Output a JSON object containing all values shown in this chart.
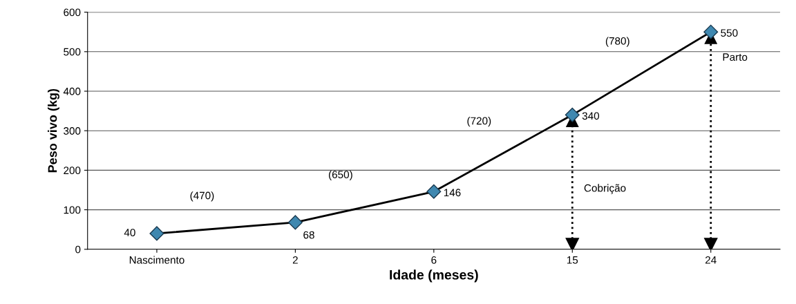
{
  "chart_data": {
    "type": "line",
    "xlabel": "Idade (meses)",
    "ylabel": "Peso vivo (kg)",
    "categories": [
      "Nascimento",
      "2",
      "6",
      "15",
      "24"
    ],
    "series": [
      {
        "color": "#000000",
        "values": [
          40,
          68,
          146,
          340,
          550
        ]
      }
    ],
    "marker": "diamond",
    "line_style": "solid",
    "data_labels": true,
    "ylim": [
      0,
      600
    ],
    "yticks": [
      0,
      100,
      200,
      300,
      400,
      500,
      600
    ],
    "grid": "y",
    "annotations": [
      "(470)",
      "(650)",
      "(720)",
      "(780)"
    ],
    "ref_lines": [
      {
        "axis": "x",
        "value": "15",
        "label": "Cobrição",
        "color": "#000000",
        "line_style": "dotted"
      },
      {
        "axis": "x",
        "value": "24",
        "label": "Parto",
        "color": "#000000",
        "line_style": "dotted"
      }
    ]
  }
}
